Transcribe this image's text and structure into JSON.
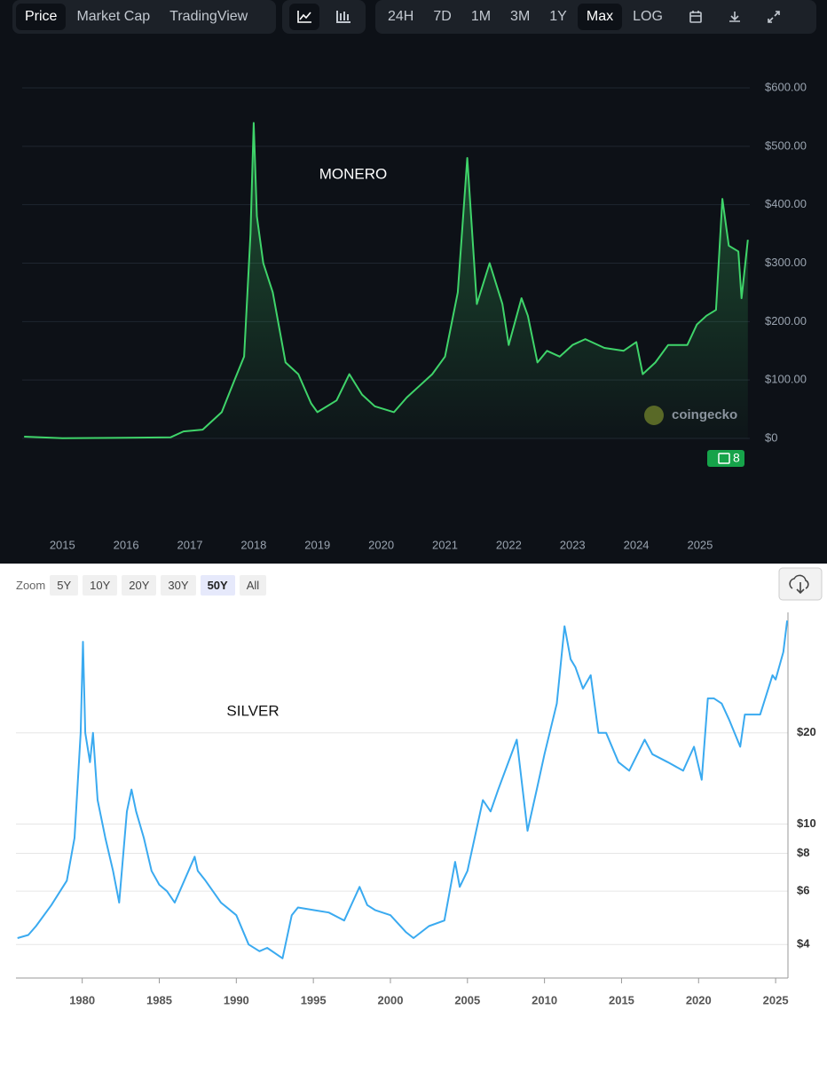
{
  "chart_data": [
    {
      "type": "line",
      "annotation": "MONERO",
      "color": "#3fd46a",
      "watermark": "coingecko",
      "news_badge": 8,
      "toolbar": {
        "tabs": [
          "Price",
          "Market Cap",
          "TradingView"
        ],
        "active_tab": 0,
        "ranges": [
          "24H",
          "7D",
          "1M",
          "3M",
          "1Y",
          "Max",
          "LOG"
        ],
        "active_range": 5
      },
      "x": [
        2014.4,
        2015,
        2016,
        2016.7,
        2016.9,
        2017.2,
        2017.5,
        2017.7,
        2017.85,
        2017.95,
        2018.0,
        2018.05,
        2018.15,
        2018.3,
        2018.5,
        2018.7,
        2018.9,
        2019.0,
        2019.3,
        2019.5,
        2019.7,
        2019.9,
        2020.2,
        2020.4,
        2020.6,
        2020.8,
        2021.0,
        2021.2,
        2021.35,
        2021.5,
        2021.7,
        2021.9,
        2022.0,
        2022.2,
        2022.3,
        2022.45,
        2022.6,
        2022.8,
        2023.0,
        2023.2,
        2023.5,
        2023.8,
        2024.0,
        2024.1,
        2024.3,
        2024.5,
        2024.8,
        2024.95,
        2025.1,
        2025.25,
        2025.35,
        2025.45,
        2025.6,
        2025.65,
        2025.75
      ],
      "values": [
        3,
        0.5,
        1,
        2,
        12,
        15,
        45,
        100,
        140,
        350,
        540,
        380,
        300,
        250,
        130,
        110,
        60,
        45,
        65,
        110,
        75,
        55,
        45,
        70,
        90,
        110,
        140,
        250,
        480,
        230,
        300,
        230,
        160,
        240,
        210,
        130,
        150,
        140,
        160,
        170,
        155,
        150,
        165,
        110,
        130,
        160,
        160,
        195,
        210,
        220,
        410,
        330,
        320,
        240,
        340
      ],
      "xlim": [
        2014.37,
        2025.78
      ],
      "xticks": [
        2015,
        2016,
        2017,
        2018,
        2019,
        2020,
        2021,
        2022,
        2023,
        2024,
        2025
      ],
      "ylim": [
        0,
        600
      ],
      "yticks": [
        {
          "value": 0,
          "label": "$0"
        },
        {
          "value": 100,
          "label": "$100.00"
        },
        {
          "value": 200,
          "label": "$200.00"
        },
        {
          "value": 300,
          "label": "$300.00"
        },
        {
          "value": 400,
          "label": "$400.00"
        },
        {
          "value": 500,
          "label": "$500.00"
        },
        {
          "value": 600,
          "label": "$600.00"
        }
      ],
      "grid": true,
      "log_scale": false
    },
    {
      "type": "line",
      "annotation": "SILVER",
      "color": "#3aaaf0",
      "zoom": {
        "label": "Zoom",
        "buttons": [
          "5Y",
          "10Y",
          "20Y",
          "30Y",
          "50Y",
          "All"
        ],
        "active": 4
      },
      "x": [
        1975.8,
        1976.5,
        1977,
        1978,
        1979,
        1979.5,
        1979.9,
        1980.05,
        1980.2,
        1980.5,
        1980.7,
        1981,
        1981.5,
        1982,
        1982.4,
        1982.9,
        1983.2,
        1983.5,
        1984,
        1984.5,
        1985,
        1985.5,
        1986,
        1987.3,
        1987.5,
        1988,
        1989,
        1990,
        1990.8,
        1991.5,
        1992,
        1993,
        1993.6,
        1994,
        1995,
        1996,
        1997,
        1998,
        1998.5,
        1999,
        2000,
        2001,
        2001.5,
        2002.5,
        2003.5,
        2004.2,
        2004.5,
        2005,
        2006,
        2006.5,
        2007,
        2008.2,
        2008.9,
        2009.5,
        2010,
        2010.8,
        2011.3,
        2011.7,
        2012,
        2012.5,
        2013,
        2013.5,
        2014,
        2014.8,
        2015.5,
        2016.5,
        2017,
        2018,
        2019,
        2019.7,
        2020.2,
        2020.6,
        2021,
        2021.5,
        2022,
        2022.7,
        2023,
        2023.5,
        2024,
        2024.8,
        2025,
        2025.5,
        2025.75
      ],
      "values": [
        4.2,
        4.3,
        4.6,
        5.4,
        6.5,
        9,
        20,
        40,
        20,
        16,
        20,
        12,
        9,
        7,
        5.5,
        11,
        13,
        11,
        9,
        7,
        6.3,
        6,
        5.5,
        7.8,
        7,
        6.5,
        5.5,
        5,
        4,
        3.8,
        3.9,
        3.6,
        5,
        5.3,
        5.2,
        5.1,
        4.8,
        6.2,
        5.4,
        5.2,
        5,
        4.4,
        4.2,
        4.6,
        4.8,
        7.5,
        6.2,
        7,
        12,
        11,
        13,
        19,
        9.5,
        13,
        17,
        25,
        45,
        35,
        33,
        28,
        31,
        20,
        20,
        16,
        15,
        19,
        17,
        16,
        15,
        18,
        14,
        26,
        26,
        25,
        22,
        18,
        23,
        23,
        23,
        31,
        30,
        37,
        47
      ],
      "xlim": [
        1975.7,
        2025.8
      ],
      "xticks": [
        1980,
        1985,
        1990,
        1995,
        2000,
        2005,
        2010,
        2015,
        2020,
        2025
      ],
      "ylim": [
        3.1,
        50
      ],
      "yticks": [
        {
          "value": 4,
          "label": "$4"
        },
        {
          "value": 6,
          "label": "$6"
        },
        {
          "value": 8,
          "label": "$8"
        },
        {
          "value": 10,
          "label": "$10"
        },
        {
          "value": 20,
          "label": "$20"
        }
      ],
      "grid": true,
      "log_scale": true
    }
  ]
}
